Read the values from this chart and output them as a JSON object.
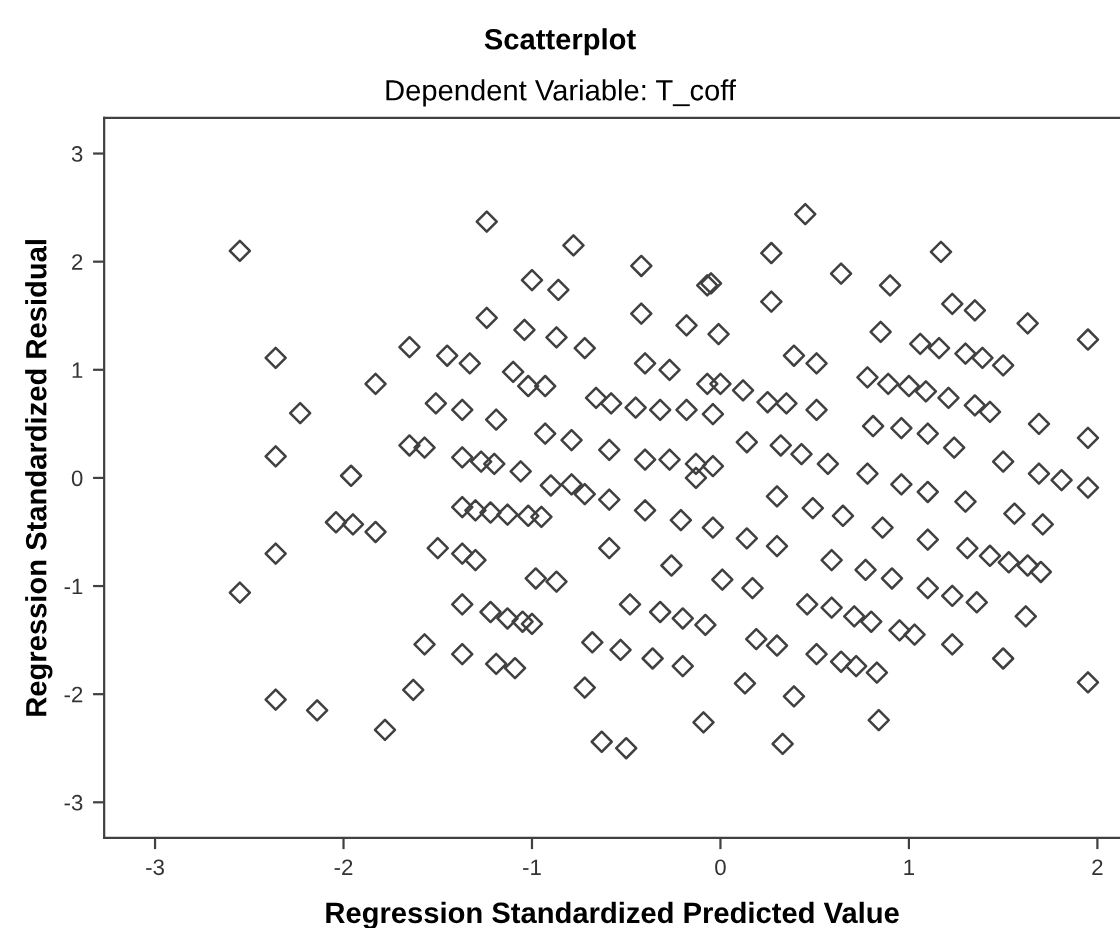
{
  "chart_data": {
    "type": "scatter",
    "title": "Scatterplot",
    "subtitle": "Dependent Variable: T_coff",
    "xlabel": "Regression Standardized Predicted Value",
    "ylabel": "Regression Standardized Residual",
    "xlim": [
      -3.27,
      2.12
    ],
    "ylim": [
      -3.33,
      3.33
    ],
    "xticks": [
      -3,
      -2,
      -1,
      0,
      1,
      2
    ],
    "yticks": [
      -3,
      -2,
      -1,
      0,
      1,
      2,
      3
    ],
    "grid": false,
    "marker": "diamond",
    "series": [
      {
        "color": "#404040",
        "x": [
          -2.55,
          -2.36,
          -2.36,
          -2.23,
          -1.83,
          -1.24,
          -1.24,
          -1.65,
          -1.45,
          -1.33,
          -1.0,
          -1.04,
          -1.1,
          -1.02,
          -1.51,
          -1.37,
          -1.19,
          -1.65,
          -1.57,
          -1.37,
          -1.27,
          -1.2,
          -1.06,
          -1.96,
          -2.04,
          -1.95,
          -1.83,
          -2.36,
          -2.55,
          -2.36,
          -2.14,
          -1.78,
          -1.63,
          -1.57,
          -1.5,
          -1.37,
          -1.3,
          -1.22,
          -1.13,
          -1.02,
          -0.95,
          -1.37,
          -1.3,
          -0.98,
          -0.87,
          -1.37,
          -1.22,
          -1.13,
          -1.05,
          -1.0,
          -1.37,
          -1.19,
          -1.09,
          -0.72,
          -0.59,
          -0.4,
          -0.21,
          -0.04,
          0.14,
          0.3,
          -0.59,
          -0.26,
          0.01,
          0.17,
          -0.48,
          -0.32,
          -0.2,
          -0.08,
          0.19,
          0.3,
          -0.68,
          -0.53,
          -0.36,
          -0.2,
          -0.72,
          0.13,
          0.39,
          -0.09,
          0.84,
          -0.63,
          -0.5,
          0.33,
          1.95,
          1.5,
          1.23,
          1.62,
          1.36,
          1.23,
          1.1,
          0.51,
          0.64,
          0.72,
          0.83,
          0.46,
          0.59,
          0.71,
          0.8,
          0.95,
          1.03,
          0.59,
          0.77,
          0.91,
          1.1,
          1.31,
          1.43,
          1.53,
          1.63,
          1.7,
          1.1,
          1.3,
          1.56,
          1.71,
          1.69,
          1.81,
          1.95,
          0.78,
          0.96,
          0.3,
          0.49,
          0.65,
          0.86,
          -0.9,
          -0.78,
          -0.42,
          -0.07,
          0.27,
          0.45,
          0.64,
          0.9,
          1.17,
          1.23,
          1.35,
          1.63,
          1.95,
          -0.86,
          -0.42,
          0.27,
          -0.18,
          -0.01,
          -0.87,
          -0.72,
          0.39,
          0.51,
          0.85,
          1.06,
          1.16,
          1.3,
          1.39,
          1.5,
          -0.4,
          -0.27,
          -0.07,
          0.0,
          0.12,
          0.25,
          0.35,
          0.51,
          0.78,
          0.89,
          1.0,
          1.09,
          1.21,
          1.35,
          1.43,
          1.69,
          1.95,
          -0.93,
          -0.66,
          -0.58,
          -0.45,
          -0.32,
          -0.18,
          -0.04,
          -0.93,
          -0.79,
          -0.59,
          -0.4,
          -0.27,
          -0.13,
          -0.04,
          0.14,
          0.32,
          0.43,
          0.57,
          0.81,
          0.96,
          1.1,
          1.24,
          1.5,
          -0.79,
          -0.05,
          -0.13
        ],
        "values": [
          2.1,
          1.11,
          0.2,
          0.6,
          0.87,
          2.37,
          1.48,
          1.21,
          1.13,
          1.06,
          1.83,
          1.37,
          0.98,
          0.85,
          0.69,
          0.63,
          0.54,
          0.3,
          0.28,
          0.19,
          0.15,
          0.13,
          0.06,
          0.02,
          -0.41,
          -0.43,
          -0.5,
          -0.7,
          -1.06,
          -2.05,
          -2.15,
          -2.33,
          -1.96,
          -1.54,
          -0.65,
          -0.27,
          -0.3,
          -0.32,
          -0.34,
          -0.35,
          -0.36,
          -0.7,
          -0.76,
          -0.93,
          -0.96,
          -1.17,
          -1.24,
          -1.3,
          -1.33,
          -1.35,
          -1.63,
          -1.72,
          -1.76,
          -0.15,
          -0.2,
          -0.3,
          -0.39,
          -0.46,
          -0.56,
          -0.63,
          -0.65,
          -0.81,
          -0.94,
          -1.02,
          -1.17,
          -1.24,
          -1.3,
          -1.36,
          -1.49,
          -1.55,
          -1.52,
          -1.59,
          -1.67,
          -1.74,
          -1.94,
          -1.9,
          -2.02,
          -2.26,
          -2.24,
          -2.44,
          -2.5,
          -2.46,
          -1.89,
          -1.67,
          -1.54,
          -1.28,
          -1.15,
          -1.09,
          -1.02,
          -1.63,
          -1.7,
          -1.74,
          -1.8,
          -1.17,
          -1.2,
          -1.28,
          -1.33,
          -1.41,
          -1.45,
          -0.76,
          -0.85,
          -0.93,
          -0.57,
          -0.65,
          -0.72,
          -0.78,
          -0.81,
          -0.87,
          -0.13,
          -0.22,
          -0.33,
          -0.43,
          0.04,
          -0.02,
          -0.09,
          0.04,
          -0.06,
          -0.17,
          -0.28,
          -0.35,
          -0.46,
          -0.07,
          2.15,
          1.96,
          1.78,
          2.08,
          2.44,
          1.89,
          1.78,
          2.09,
          1.61,
          1.55,
          1.43,
          1.28,
          1.74,
          1.52,
          1.63,
          1.41,
          1.33,
          1.3,
          1.2,
          1.13,
          1.06,
          1.35,
          1.24,
          1.2,
          1.15,
          1.11,
          1.04,
          1.06,
          1.0,
          0.87,
          0.87,
          0.81,
          0.7,
          0.69,
          0.63,
          0.93,
          0.87,
          0.85,
          0.8,
          0.74,
          0.67,
          0.61,
          0.5,
          0.37,
          0.85,
          0.74,
          0.69,
          0.65,
          0.63,
          0.63,
          0.59,
          0.41,
          0.35,
          0.26,
          0.17,
          0.17,
          0.13,
          0.11,
          0.33,
          0.3,
          0.22,
          0.13,
          0.48,
          0.46,
          0.41,
          0.28,
          0.15,
          -0.06,
          1.8,
          0.0
        ]
      }
    ]
  }
}
